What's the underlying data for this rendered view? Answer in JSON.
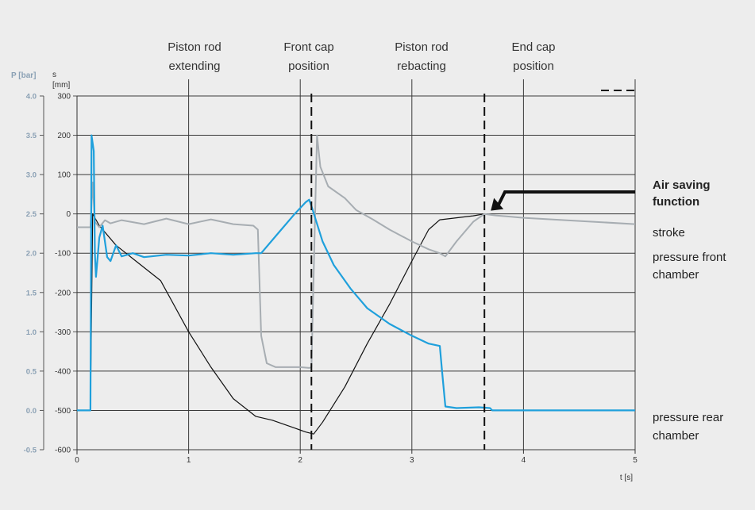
{
  "chart_data": {
    "type": "line",
    "phase_labels": [
      {
        "lines": [
          "Piston rod",
          "extending"
        ],
        "t": 1.0
      },
      {
        "lines": [
          "Front cap",
          "position"
        ],
        "t": 2.1
      },
      {
        "lines": [
          "Piston rod",
          "rebacting"
        ],
        "t": 3.0
      },
      {
        "lines": [
          "End cap",
          "position"
        ],
        "t": 4.0
      }
    ],
    "xlabel": "t [s]",
    "xlim": [
      0,
      5
    ],
    "xticks": [
      0,
      1,
      2,
      3,
      4,
      5
    ],
    "y_left_outer": {
      "label": "P [bar]",
      "ylim": [
        -0.5,
        4.0
      ],
      "ticks": [
        "4.0",
        "3.5",
        "3.0",
        "2.5",
        "2.0",
        "1.5",
        "1.0",
        "0.5",
        "0.0",
        "-0.5"
      ]
    },
    "y_left_inner": {
      "label_top": "s",
      "label": "[mm]",
      "ylim": [
        -600,
        300
      ],
      "ticks": [
        "300",
        "200",
        "100",
        "0",
        "-100",
        "-200",
        "-300",
        "-400",
        "-500",
        "-600"
      ]
    },
    "dashed_lines_t": [
      2.1,
      3.65
    ],
    "series": [
      {
        "key": "stroke",
        "color": "#111111",
        "units": "mm",
        "points": [
          [
            0,
            -500
          ],
          [
            0.12,
            -500
          ],
          [
            0.14,
            0
          ],
          [
            0.2,
            -30
          ],
          [
            0.35,
            -80
          ],
          [
            0.55,
            -125
          ],
          [
            0.75,
            -170
          ],
          [
            1.0,
            -300
          ],
          [
            1.2,
            -390
          ],
          [
            1.4,
            -470
          ],
          [
            1.6,
            -515
          ],
          [
            1.75,
            -525
          ],
          [
            1.95,
            -545
          ],
          [
            2.05,
            -555
          ],
          [
            2.12,
            -560
          ],
          [
            2.2,
            -530
          ],
          [
            2.4,
            -440
          ],
          [
            2.6,
            -330
          ],
          [
            2.8,
            -230
          ],
          [
            3.0,
            -120
          ],
          [
            3.15,
            -40
          ],
          [
            3.25,
            -15
          ],
          [
            3.4,
            -10
          ],
          [
            3.55,
            -5
          ],
          [
            3.65,
            0
          ],
          [
            3.68,
            0
          ]
        ]
      },
      {
        "key": "pressure_front",
        "color": "#a7adb2",
        "units": "bar",
        "points": [
          [
            0,
            2.33
          ],
          [
            0.12,
            2.33
          ],
          [
            0.14,
            2.9
          ],
          [
            0.16,
            2.4
          ],
          [
            0.2,
            2.33
          ],
          [
            0.25,
            2.42
          ],
          [
            0.3,
            2.38
          ],
          [
            0.4,
            2.42
          ],
          [
            0.6,
            2.37
          ],
          [
            0.8,
            2.44
          ],
          [
            1.0,
            2.37
          ],
          [
            1.2,
            2.43
          ],
          [
            1.4,
            2.37
          ],
          [
            1.58,
            2.35
          ],
          [
            1.62,
            2.3
          ],
          [
            1.65,
            0.95
          ],
          [
            1.7,
            0.6
          ],
          [
            1.78,
            0.55
          ],
          [
            1.9,
            0.55
          ],
          [
            2.0,
            0.55
          ],
          [
            2.08,
            0.54
          ],
          [
            2.1,
            0.55
          ],
          [
            2.15,
            3.5
          ],
          [
            2.18,
            3.1
          ],
          [
            2.25,
            2.85
          ],
          [
            2.4,
            2.7
          ],
          [
            2.5,
            2.55
          ],
          [
            2.65,
            2.43
          ],
          [
            2.8,
            2.3
          ],
          [
            3.0,
            2.15
          ],
          [
            3.15,
            2.05
          ],
          [
            3.25,
            2.0
          ],
          [
            3.3,
            1.96
          ],
          [
            3.4,
            2.15
          ],
          [
            3.55,
            2.4
          ],
          [
            3.65,
            2.5
          ],
          [
            3.75,
            2.48
          ],
          [
            4.0,
            2.45
          ],
          [
            4.5,
            2.41
          ],
          [
            5.0,
            2.37
          ]
        ]
      },
      {
        "key": "pressure_rear",
        "color": "#1fa0dc",
        "units": "bar",
        "points": [
          [
            0,
            0.0
          ],
          [
            0.12,
            0.0
          ],
          [
            0.13,
            3.5
          ],
          [
            0.15,
            3.3
          ],
          [
            0.16,
            2.0
          ],
          [
            0.17,
            1.7
          ],
          [
            0.2,
            2.2
          ],
          [
            0.23,
            2.35
          ],
          [
            0.27,
            1.95
          ],
          [
            0.3,
            1.9
          ],
          [
            0.35,
            2.1
          ],
          [
            0.4,
            1.96
          ],
          [
            0.5,
            2.0
          ],
          [
            0.6,
            1.95
          ],
          [
            0.8,
            1.98
          ],
          [
            1.0,
            1.97
          ],
          [
            1.2,
            2.0
          ],
          [
            1.4,
            1.98
          ],
          [
            1.6,
            2.0
          ],
          [
            1.65,
            2.0
          ],
          [
            1.8,
            2.25
          ],
          [
            1.95,
            2.5
          ],
          [
            2.05,
            2.65
          ],
          [
            2.08,
            2.68
          ],
          [
            2.1,
            2.6
          ],
          [
            2.2,
            2.15
          ],
          [
            2.3,
            1.85
          ],
          [
            2.45,
            1.55
          ],
          [
            2.6,
            1.3
          ],
          [
            2.8,
            1.1
          ],
          [
            3.0,
            0.95
          ],
          [
            3.15,
            0.85
          ],
          [
            3.25,
            0.82
          ],
          [
            3.27,
            0.5
          ],
          [
            3.3,
            0.05
          ],
          [
            3.4,
            0.03
          ],
          [
            3.6,
            0.04
          ],
          [
            3.7,
            0.03
          ],
          [
            3.72,
            0.0
          ],
          [
            4.0,
            0.0
          ],
          [
            5.0,
            0.0
          ]
        ]
      }
    ],
    "legend": {
      "dash_symbol": "— — —",
      "air_saving": [
        "Air saving",
        "function"
      ],
      "stroke": "stroke",
      "pressure_front": [
        "pressure front",
        "chamber"
      ],
      "pressure_rear": [
        "pressure rear",
        "chamber"
      ]
    },
    "air_saving_point": {
      "t": 3.65,
      "p": 2.5
    }
  }
}
